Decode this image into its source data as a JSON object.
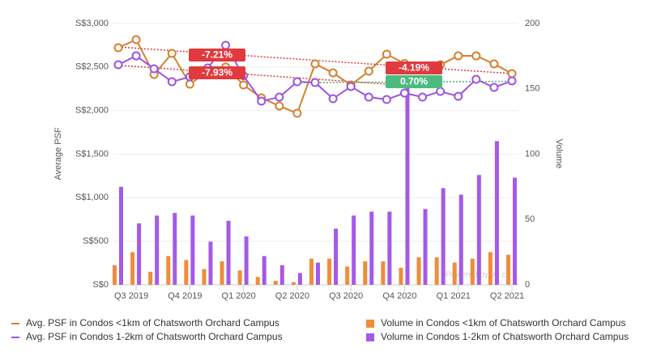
{
  "chart_data": {
    "type": "combo",
    "ylabel": "Average PSF",
    "y2label": "Volume",
    "categories": [
      null,
      "Q3 2019",
      null,
      null,
      "Q4 2019",
      null,
      null,
      "Q1 2020",
      null,
      null,
      "Q2 2020",
      null,
      null,
      "Q3 2020",
      null,
      null,
      "Q4 2020",
      null,
      null,
      "Q1 2021",
      null,
      null,
      "Q2 2021"
    ],
    "ylim": [
      0,
      3000
    ],
    "yticks": [
      {
        "value": 0,
        "label": "S$0"
      },
      {
        "value": 500,
        "label": "S$500"
      },
      {
        "value": 1000,
        "label": "S$1,000"
      },
      {
        "value": 1500,
        "label": "S$1,500"
      },
      {
        "value": 2000,
        "label": "S$2,000"
      },
      {
        "value": 2500,
        "label": "S$2,500"
      },
      {
        "value": 3000,
        "label": "S$3,000"
      }
    ],
    "y2lim": [
      0,
      200
    ],
    "y2ticks": [
      0,
      50,
      100,
      150,
      200
    ],
    "grid": true,
    "series": [
      {
        "name": "Avg. PSF in Condos <1km of Chatsworth Orchard Campus",
        "type": "line",
        "color": "#d3812f",
        "values": [
          2721,
          2814,
          2415,
          2656,
          2303,
          2450,
          2500,
          2294,
          2145,
          2053,
          1969,
          2536,
          2433,
          2294,
          2452,
          2647,
          2540,
          2480,
          2526,
          2628,
          2628,
          2536,
          2424
        ]
      },
      {
        "name": "Avg. PSF in Condos 1-2km of Chatsworth Orchard Campus",
        "type": "line",
        "color": "#9b55e0",
        "values": [
          2526,
          2628,
          2480,
          2331,
          2387,
          2489,
          2749,
          2400,
          2108,
          2155,
          2331,
          2322,
          2136,
          2276,
          2155,
          2127,
          2201,
          2155,
          2220,
          2164,
          2359,
          2266,
          2341
        ]
      },
      {
        "name": "Volume in Condos <1km of Chatsworth Orchard Campus",
        "type": "bar",
        "axis": "y2",
        "color": "#f08c3a",
        "values": [
          15,
          25,
          10,
          22,
          19,
          12,
          18,
          11,
          6,
          3,
          2,
          20,
          20,
          14,
          18,
          18,
          13,
          21,
          21,
          17,
          20,
          25,
          23
        ]
      },
      {
        "name": "Volume in Condos 1-2km of Chatsworth Orchard Campus",
        "type": "bar",
        "axis": "y2",
        "color": "#a45ae6",
        "values": [
          75,
          47,
          53,
          55,
          53,
          33,
          49,
          37,
          22,
          15,
          9,
          17,
          43,
          53,
          56,
          56,
          152,
          58,
          74,
          69,
          84,
          110,
          82
        ]
      }
    ],
    "trendlines": [
      {
        "start_index": 0,
        "end_index": 22,
        "start": 2730,
        "end": 2425,
        "color": "#e03a3e"
      },
      {
        "start_index": 0,
        "end_index": 17,
        "start": 2520,
        "end": 2275,
        "color": "#e03a3e"
      },
      {
        "start_index": 10,
        "end_index": 22,
        "start": 2320,
        "end": 2336,
        "color": "#3fb56f"
      }
    ],
    "annotations": [
      {
        "text": "-7.21%",
        "color": "#e03a3e"
      },
      {
        "text": "-7.93%",
        "color": "#e03a3e"
      },
      {
        "text": "-4.19%",
        "color": "#e03a3e"
      },
      {
        "text": "0.70%",
        "color": "#4cbb7f"
      }
    ],
    "watermark": "Powered by 99.co"
  }
}
